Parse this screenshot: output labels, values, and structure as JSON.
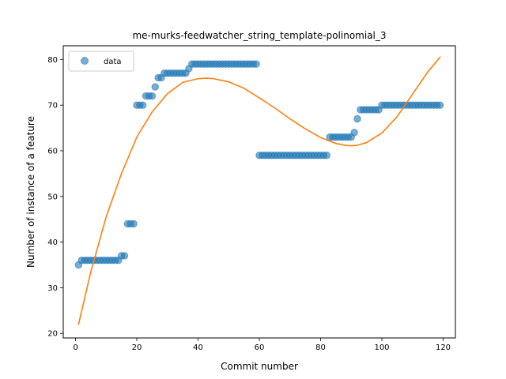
{
  "chart_data": {
    "type": "scatter",
    "title": "me-murks-feedwatcher_string_template-polinomial_3",
    "xlabel": "Commit number",
    "ylabel": "Number of instance of a feature",
    "xlim": [
      -4,
      124
    ],
    "ylim": [
      19,
      83
    ],
    "xticks": [
      0,
      20,
      40,
      60,
      80,
      100,
      120
    ],
    "yticks": [
      20,
      30,
      40,
      50,
      60,
      70,
      80
    ],
    "grid": false,
    "legend": {
      "placement": "top-left",
      "entries": [
        "data"
      ]
    },
    "series": [
      {
        "name": "data",
        "kind": "scatter",
        "color": "#1f77b4",
        "x": [
          1,
          2,
          3,
          4,
          5,
          6,
          7,
          8,
          9,
          10,
          11,
          12,
          13,
          14,
          15,
          16,
          17,
          18,
          19,
          20,
          21,
          22,
          23,
          24,
          25,
          26,
          27,
          28,
          29,
          30,
          31,
          32,
          33,
          34,
          35,
          36,
          37,
          38,
          39,
          40,
          41,
          42,
          43,
          44,
          45,
          46,
          47,
          48,
          49,
          50,
          51,
          52,
          53,
          54,
          55,
          56,
          57,
          58,
          59,
          60,
          61,
          62,
          63,
          64,
          65,
          66,
          67,
          68,
          69,
          70,
          71,
          72,
          73,
          74,
          75,
          76,
          77,
          78,
          79,
          80,
          81,
          82,
          83,
          84,
          85,
          86,
          87,
          88,
          89,
          90,
          91,
          92,
          93,
          94,
          95,
          96,
          97,
          98,
          99,
          100,
          101,
          102,
          103,
          104,
          105,
          106,
          107,
          108,
          109,
          110,
          111,
          112,
          113,
          114,
          115,
          116,
          117,
          118,
          119
        ],
        "y": [
          35,
          36,
          36,
          36,
          36,
          36,
          36,
          36,
          36,
          36,
          36,
          36,
          36,
          36,
          37,
          37,
          44,
          44,
          44,
          70,
          70,
          70,
          72,
          72,
          72,
          74,
          76,
          76,
          77,
          77,
          77,
          77,
          77,
          77,
          77,
          77,
          78,
          79,
          79,
          79,
          79,
          79,
          79,
          79,
          79,
          79,
          79,
          79,
          79,
          79,
          79,
          79,
          79,
          79,
          79,
          79,
          79,
          79,
          79,
          59,
          59,
          59,
          59,
          59,
          59,
          59,
          59,
          59,
          59,
          59,
          59,
          59,
          59,
          59,
          59,
          59,
          59,
          59,
          59,
          59,
          59,
          59,
          63,
          63,
          63,
          63,
          63,
          63,
          63,
          63,
          64,
          67,
          69,
          69,
          69,
          69,
          69,
          69,
          69,
          70,
          70,
          70,
          70,
          70,
          70,
          70,
          70,
          70,
          70,
          70,
          70,
          70,
          70,
          70,
          70,
          70,
          70,
          70,
          70
        ]
      },
      {
        "kind": "line",
        "color": "#ff7f0e",
        "x": [
          1,
          5,
          10,
          15,
          20,
          25,
          30,
          35,
          40,
          43,
          45,
          50,
          55,
          60,
          65,
          70,
          75,
          80,
          85,
          88,
          90,
          92,
          95,
          100,
          105,
          110,
          115,
          119
        ],
        "y": [
          22,
          33.5,
          45.5,
          55,
          63,
          68.5,
          72.5,
          75,
          75.8,
          75.9,
          75.8,
          75.1,
          73.7,
          71.6,
          69.4,
          67,
          64.8,
          62.9,
          61.6,
          61.2,
          61.1,
          61.2,
          61.8,
          63.9,
          67.5,
          72.4,
          77.3,
          80.5
        ]
      }
    ]
  }
}
